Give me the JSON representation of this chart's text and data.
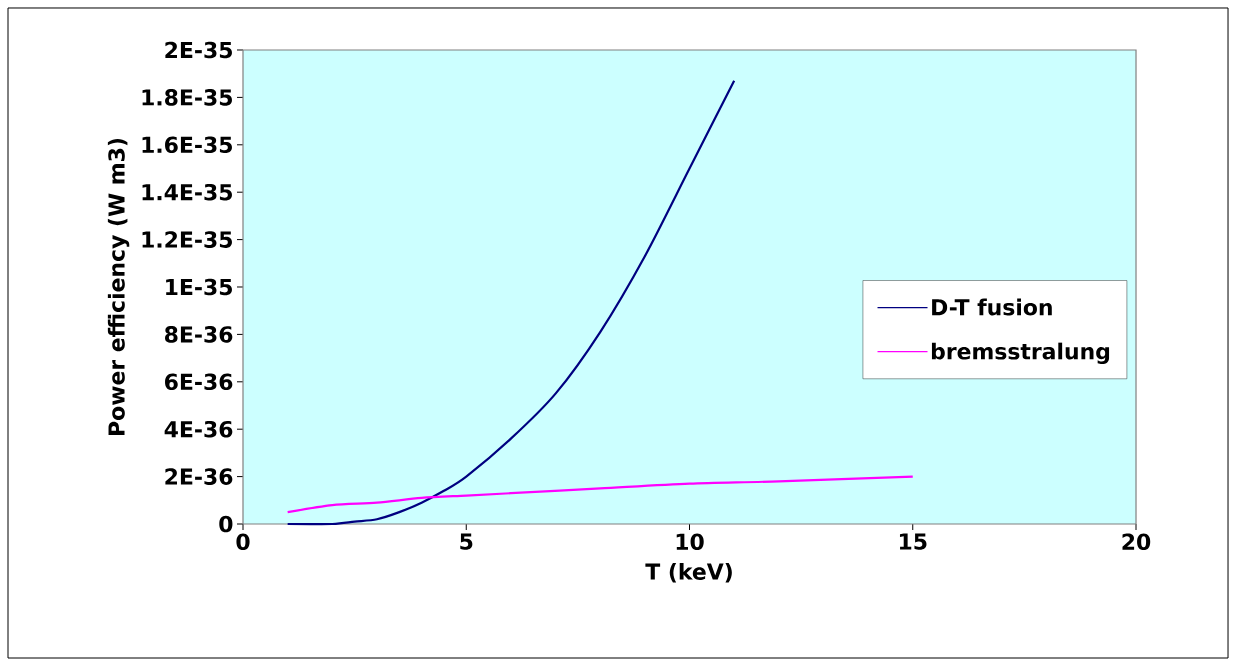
{
  "chart_data": {
    "type": "line",
    "xlabel": "T (keV)",
    "ylabel": "Power efficiency (W m3)",
    "series": [
      {
        "name": "D-T fusion",
        "color": "#000080",
        "x": [
          1,
          2,
          2.5,
          3,
          3.5,
          4,
          4.5,
          5,
          6,
          7,
          8,
          9,
          10,
          11
        ],
        "values": [
          0,
          0,
          1e-37,
          2e-37,
          5e-37,
          9e-37,
          1.4e-36,
          2e-36,
          3.6e-36,
          5.5e-36,
          8.1e-36,
          1.13e-35,
          1.5e-35,
          1.87e-35
        ]
      },
      {
        "name": "bremsstralung",
        "color": "#ff00ff",
        "x": [
          1,
          2,
          3,
          4,
          5,
          6,
          8,
          10,
          12,
          15
        ],
        "values": [
          5e-37,
          8e-37,
          9e-37,
          1.1e-36,
          1.2e-36,
          1.3e-36,
          1.5e-36,
          1.7e-36,
          1.8e-36,
          2e-36
        ]
      }
    ],
    "xlim": [
      0,
      20
    ],
    "xticks": [
      0,
      5,
      10,
      15,
      20
    ],
    "ylim": [
      0,
      2e-35
    ],
    "yticks": [
      {
        "value": 0,
        "label": "0"
      },
      {
        "value": 2e-36,
        "label": "2E-36"
      },
      {
        "value": 4e-36,
        "label": "4E-36"
      },
      {
        "value": 6e-36,
        "label": "6E-36"
      },
      {
        "value": 8e-36,
        "label": "8E-36"
      },
      {
        "value": 1e-35,
        "label": "1E-35"
      },
      {
        "value": 1.2e-35,
        "label": "1.2E-35"
      },
      {
        "value": 1.4e-35,
        "label": "1.4E-35"
      },
      {
        "value": 1.6e-35,
        "label": "1.6E-35"
      },
      {
        "value": 1.8e-35,
        "label": "1.8E-35"
      },
      {
        "value": 2e-35,
        "label": "2E-35"
      }
    ],
    "grid": false,
    "legend": "right",
    "marker": "none",
    "line_style": "solid"
  }
}
